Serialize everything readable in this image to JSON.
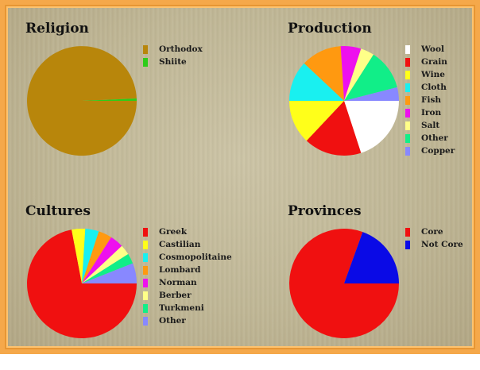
{
  "religion": {
    "title": "Religion",
    "chart_data": {
      "type": "pie",
      "labels": [
        "Orthodox",
        "Shiite"
      ],
      "values": [
        99.3,
        0.7
      ],
      "colors": [
        "#b8860b",
        "#2ecc19"
      ]
    }
  },
  "production": {
    "title": "Production",
    "chart_data": {
      "type": "pie",
      "labels": [
        "Wool",
        "Grain",
        "Wine",
        "Cloth",
        "Fish",
        "Iron",
        "Salt",
        "Other",
        "Copper"
      ],
      "values": [
        20,
        17,
        13,
        12,
        12,
        6,
        4,
        12,
        4
      ],
      "colors": [
        "#ffffff",
        "#f01010",
        "#ffff1a",
        "#19f0f0",
        "#ff9910",
        "#ee10ee",
        "#ffff88",
        "#11ee88",
        "#8888ff"
      ]
    }
  },
  "cultures": {
    "title": "Cultures",
    "chart_data": {
      "type": "pie",
      "labels": [
        "Greek",
        "Castilian",
        "Cosmopolitaine",
        "Lombard",
        "Norman",
        "Berber",
        "Turkmeni",
        "Other"
      ],
      "values": [
        72,
        4,
        4,
        4,
        4,
        3,
        3,
        6
      ],
      "colors": [
        "#f01010",
        "#ffff1a",
        "#19f0f0",
        "#ff9910",
        "#ee10ee",
        "#ffff88",
        "#11ee88",
        "#8888ff"
      ]
    }
  },
  "provinces": {
    "title": "Provinces",
    "chart_data": {
      "type": "pie",
      "labels": [
        "Core",
        "Not Core"
      ],
      "values": [
        80.5,
        19.5
      ],
      "colors": [
        "#f01010",
        "#0a0ae6"
      ]
    }
  }
}
